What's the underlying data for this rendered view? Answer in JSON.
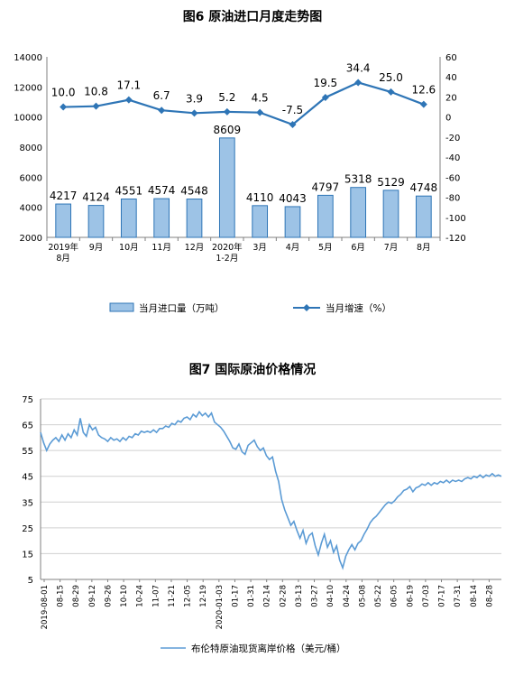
{
  "chart_data": [
    {
      "type": "bar+line",
      "title": "图6  原油进口月度走势图",
      "categories": [
        "2019年\n8月",
        "9月",
        "10月",
        "11月",
        "12月",
        "2020年\n1-2月",
        "3月",
        "4月",
        "5月",
        "6月",
        "7月",
        "8月"
      ],
      "y_left": {
        "ticks": [
          "2000",
          "4000",
          "6000",
          "8000",
          "10000",
          "12000",
          "14000"
        ],
        "ylim": [
          2000,
          14000
        ]
      },
      "y_right": {
        "ticks": [
          "-120",
          "-100",
          "-80",
          "-60",
          "-40",
          "-20",
          "0",
          "20",
          "40",
          "60"
        ],
        "ylim": [
          -120,
          60
        ]
      },
      "series": [
        {
          "name": "当月进口量（万吨）",
          "type": "bar",
          "axis": "left",
          "values": [
            4217,
            4124,
            4551,
            4574,
            4548,
            8609,
            4110,
            4043,
            4797,
            5318,
            5129,
            4748
          ],
          "labels": [
            "4217",
            "4124",
            "4551",
            "4574",
            "4548",
            "8609",
            "4110",
            "4043",
            "4797",
            "5318",
            "5129",
            "4748"
          ]
        },
        {
          "name": "当月增速（%）",
          "type": "line",
          "axis": "right",
          "values": [
            10.0,
            10.8,
            17.1,
            6.7,
            3.9,
            5.2,
            4.5,
            -7.5,
            19.5,
            34.4,
            25.0,
            12.6
          ],
          "labels": [
            "10.0",
            "10.8",
            "17.1",
            "6.7",
            "3.9",
            "5.2",
            "4.5",
            "-7.5",
            "19.5",
            "34.4",
            "25.0",
            "12.6"
          ]
        }
      ],
      "colors": {
        "bar_fill": "#9dc3e6",
        "bar_stroke": "#2e75b6",
        "line": "#2e75b6"
      }
    },
    {
      "type": "line",
      "title": "图7  国际原油价格情况",
      "ylim": [
        5,
        75
      ],
      "y_ticks": [
        "5",
        "15",
        "25",
        "35",
        "45",
        "55",
        "65",
        "75"
      ],
      "x_ticks": [
        "2019-08-01",
        "08-15",
        "08-29",
        "09-12",
        "09-26",
        "10-10",
        "10-24",
        "11-07",
        "11-21",
        "12-05",
        "12-19",
        "2020-01-03",
        "01-17",
        "01-31",
        "02-14",
        "02-28",
        "03-13",
        "03-27",
        "04-10",
        "04-24",
        "05-08",
        "05-22",
        "06-05",
        "06-19",
        "07-03",
        "07-17",
        "07-31",
        "08-14",
        "08-28"
      ],
      "series": [
        {
          "name": "布伦特原油现货离岸价格（美元/桶）",
          "points": [
            [
              0,
              62
            ],
            [
              1,
              58
            ],
            [
              2,
              55
            ],
            [
              3,
              57.5
            ],
            [
              4,
              59
            ],
            [
              5,
              60
            ],
            [
              6,
              58.5
            ],
            [
              7,
              61
            ],
            [
              8,
              59
            ],
            [
              9,
              61.5
            ],
            [
              10,
              60
            ],
            [
              11,
              63
            ],
            [
              12,
              61
            ],
            [
              13,
              67.5
            ],
            [
              14,
              62
            ],
            [
              15,
              60.5
            ],
            [
              16,
              65
            ],
            [
              17,
              63
            ],
            [
              18,
              64
            ],
            [
              19,
              61
            ],
            [
              20,
              60
            ],
            [
              21,
              59.5
            ],
            [
              22,
              58.5
            ],
            [
              23,
              60
            ],
            [
              24,
              59
            ],
            [
              25,
              59.5
            ],
            [
              26,
              58.5
            ],
            [
              27,
              60
            ],
            [
              28,
              59
            ],
            [
              29,
              60.5
            ],
            [
              30,
              60
            ],
            [
              31,
              61.5
            ],
            [
              32,
              61
            ],
            [
              33,
              62.5
            ],
            [
              34,
              62
            ],
            [
              35,
              62.5
            ],
            [
              36,
              62
            ],
            [
              37,
              63
            ],
            [
              38,
              62
            ],
            [
              39,
              63.5
            ],
            [
              40,
              63.5
            ],
            [
              41,
              64.5
            ],
            [
              42,
              64
            ],
            [
              43,
              65.5
            ],
            [
              44,
              65
            ],
            [
              45,
              66.5
            ],
            [
              46,
              66
            ],
            [
              47,
              67.5
            ],
            [
              48,
              68
            ],
            [
              49,
              67
            ],
            [
              50,
              69
            ],
            [
              51,
              68
            ],
            [
              52,
              70
            ],
            [
              53,
              68.5
            ],
            [
              54,
              69.5
            ],
            [
              55,
              68
            ],
            [
              56,
              69.5
            ],
            [
              57,
              66
            ],
            [
              58,
              65
            ],
            [
              59,
              64
            ],
            [
              60,
              62.5
            ],
            [
              61,
              60.5
            ],
            [
              62,
              58.5
            ],
            [
              63,
              56
            ],
            [
              64,
              55.5
            ],
            [
              65,
              57.5
            ],
            [
              66,
              54.5
            ],
            [
              67,
              53.5
            ],
            [
              68,
              57
            ],
            [
              69,
              58
            ],
            [
              70,
              59
            ],
            [
              71,
              56.5
            ],
            [
              72,
              55
            ],
            [
              73,
              56
            ],
            [
              74,
              53
            ],
            [
              75,
              51.5
            ],
            [
              76,
              52.5
            ],
            [
              77,
              47
            ],
            [
              78,
              43
            ],
            [
              79,
              36
            ],
            [
              80,
              32
            ],
            [
              81,
              29
            ],
            [
              82,
              26
            ],
            [
              83,
              27.5
            ],
            [
              84,
              24
            ],
            [
              85,
              21
            ],
            [
              86,
              24
            ],
            [
              87,
              19
            ],
            [
              88,
              22
            ],
            [
              89,
              23
            ],
            [
              90,
              18
            ],
            [
              91,
              14.5
            ],
            [
              92,
              19
            ],
            [
              93,
              22.5
            ],
            [
              94,
              17.5
            ],
            [
              95,
              20
            ],
            [
              96,
              15.5
            ],
            [
              97,
              18
            ],
            [
              98,
              12.5
            ],
            [
              99,
              9.5
            ],
            [
              100,
              14
            ],
            [
              101,
              16.5
            ],
            [
              102,
              18.5
            ],
            [
              103,
              16.5
            ],
            [
              104,
              19
            ],
            [
              105,
              20
            ],
            [
              106,
              22.5
            ],
            [
              107,
              24.5
            ],
            [
              108,
              27
            ],
            [
              109,
              28.5
            ],
            [
              110,
              29.5
            ],
            [
              111,
              31
            ],
            [
              112,
              32.5
            ],
            [
              113,
              34
            ],
            [
              114,
              35
            ],
            [
              115,
              34.5
            ],
            [
              116,
              35.5
            ],
            [
              117,
              37
            ],
            [
              118,
              38
            ],
            [
              119,
              39.5
            ],
            [
              120,
              40
            ],
            [
              121,
              41
            ],
            [
              122,
              39
            ],
            [
              123,
              40.5
            ],
            [
              124,
              41
            ],
            [
              125,
              42
            ],
            [
              126,
              41.5
            ],
            [
              127,
              42.5
            ],
            [
              128,
              41.5
            ],
            [
              129,
              42.5
            ],
            [
              130,
              42
            ],
            [
              131,
              43
            ],
            [
              132,
              42.5
            ],
            [
              133,
              43.5
            ],
            [
              134,
              42.5
            ],
            [
              135,
              43.5
            ],
            [
              136,
              43
            ],
            [
              137,
              43.5
            ],
            [
              138,
              43
            ],
            [
              139,
              44
            ],
            [
              140,
              44.5
            ],
            [
              141,
              44
            ],
            [
              142,
              45
            ],
            [
              143,
              44.5
            ],
            [
              144,
              45.5
            ],
            [
              145,
              44.5
            ],
            [
              146,
              45.5
            ],
            [
              147,
              45
            ],
            [
              148,
              46
            ],
            [
              149,
              45
            ],
            [
              150,
              45.5
            ],
            [
              151,
              45
            ]
          ]
        }
      ],
      "colors": {
        "line": "#5b9bd5"
      }
    }
  ]
}
